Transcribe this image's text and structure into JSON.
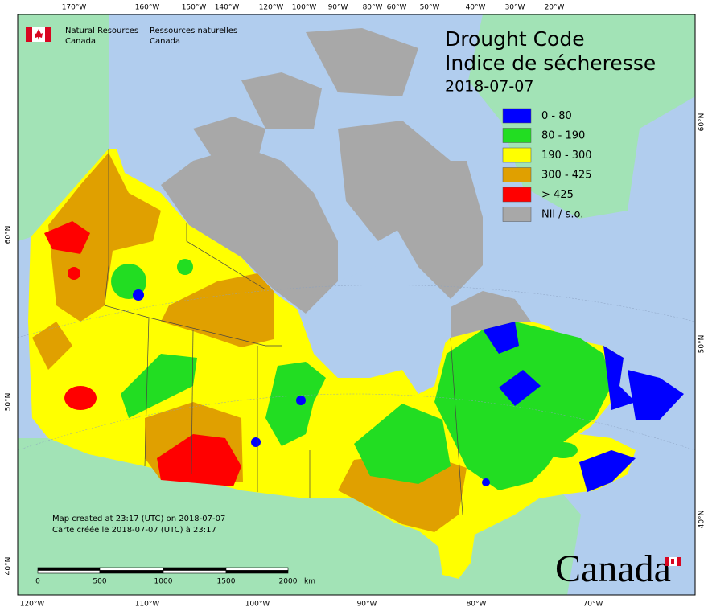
{
  "header": {
    "agency_en": [
      "Natural Resources",
      "Canada"
    ],
    "agency_fr": [
      "Ressources naturelles",
      "Canada"
    ]
  },
  "title": [
    "Drought Code",
    "Indice de sécheresse"
  ],
  "date": "2018-07-07",
  "legend": [
    {
      "label": "0 - 80",
      "color": "#0000ff"
    },
    {
      "label": "80 - 190",
      "color": "#22dd22"
    },
    {
      "label": "190 - 300",
      "color": "#ffff00"
    },
    {
      "label": "300 - 425",
      "color": "#e0a000"
    },
    {
      "label": "> 425",
      "color": "#ff0000"
    },
    {
      "label": "Nil / s.o.",
      "color": "#a8a8a8"
    }
  ],
  "credits": [
    "Map created at 23:17 (UTC) on 2018-07-07",
    "Carte créée le 2018-07-07 (UTC) à 23:17"
  ],
  "scale_bar": {
    "labels": [
      "0",
      "500",
      "1000",
      "1500",
      "2000"
    ],
    "unit": "km"
  },
  "graticule": {
    "top": [
      "170°W",
      "160°W",
      "150°W",
      "140°W",
      "120°W",
      "100°W",
      "90°W",
      "80°W",
      "60°W",
      "50°W",
      "40°W",
      "30°W",
      "20°W"
    ],
    "bottom": [
      "120°W",
      "110°W",
      "100°W",
      "90°W",
      "80°W",
      "70°W"
    ],
    "left": [
      "60°N",
      "50°N",
      "40°N"
    ],
    "right": [
      "60°N",
      "50°N",
      "40°N"
    ]
  },
  "wordmark": "Canada"
}
